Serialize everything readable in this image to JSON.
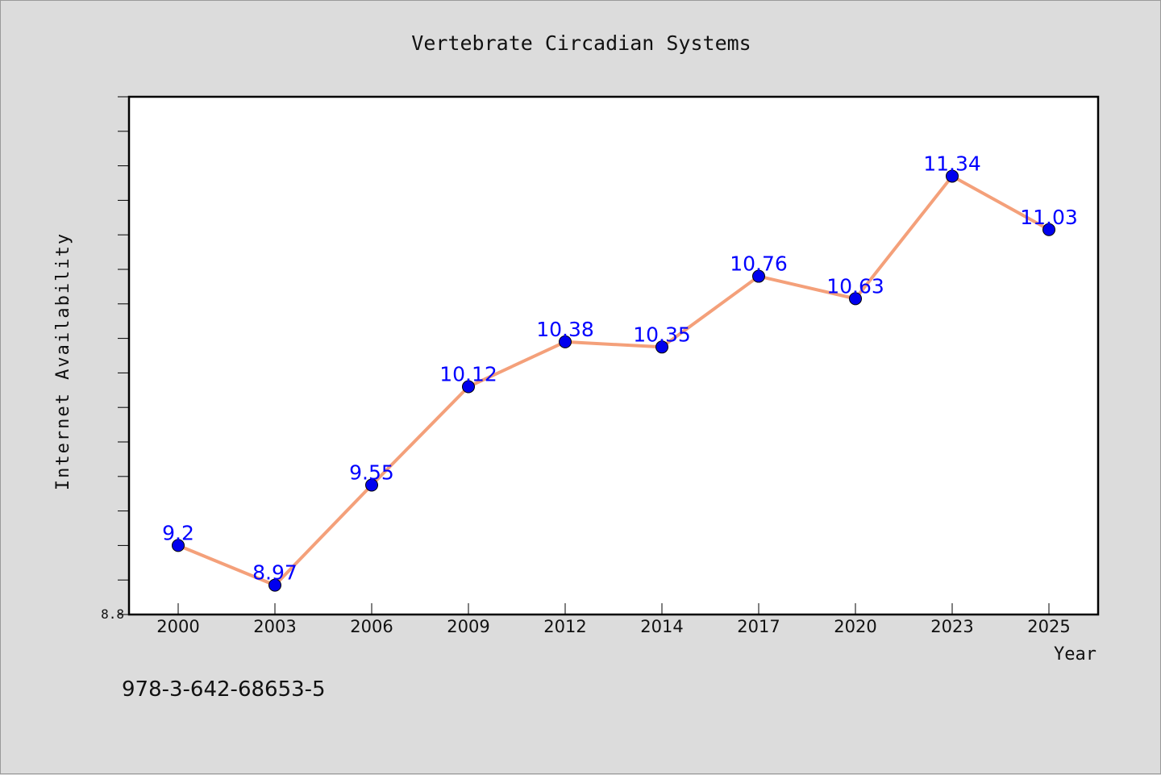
{
  "chart_data": {
    "type": "line",
    "title": "Vertebrate Circadian Systems",
    "xlabel": "Year",
    "ylabel": "Internet Availability",
    "categories": [
      "2000",
      "2003",
      "2006",
      "2009",
      "2012",
      "2014",
      "2017",
      "2020",
      "2023",
      "2025"
    ],
    "series": [
      {
        "values": [
          9.2,
          8.97,
          9.55,
          10.12,
          10.38,
          10.35,
          10.76,
          10.63,
          11.34,
          11.03
        ],
        "labels": [
          "9.2",
          "8.97",
          "9.55",
          "10.12",
          "10.38",
          "10.35",
          "10.76",
          "10.63",
          "11.34",
          "11.03"
        ],
        "line_color": "#f4a07a",
        "marker_color": "#0000ee",
        "label_color": "#0000ff"
      }
    ],
    "yticks": [
      "8.8"
    ],
    "ylim": [
      8.8,
      11.8
    ],
    "grid": false,
    "plot_background": "#ffffff",
    "page_background": "#dcdcdc"
  },
  "footer_note": "978-3-642-68653-5"
}
